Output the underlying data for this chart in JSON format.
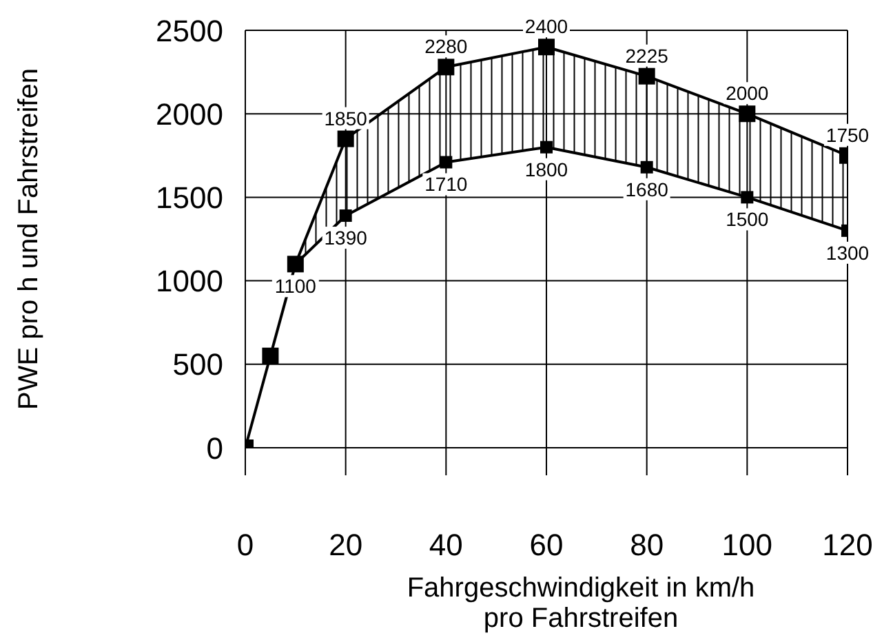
{
  "chart_data": {
    "type": "line",
    "xlabel": "Fahrgeschwindigkeit in km/h\npro Fahrstreifen",
    "ylabel": "PWE pro h und Fahrstreifen",
    "xlim": [
      0,
      120
    ],
    "xticks": [
      0,
      20,
      40,
      60,
      80,
      100,
      120
    ],
    "ylim": [
      0,
      2500
    ],
    "yticks": [
      0,
      500,
      1000,
      1500,
      2000,
      2500
    ],
    "grid": true,
    "legend": false,
    "marker": "square",
    "line_style": "solid",
    "series": [
      {
        "color": "#000000",
        "x": [
          0,
          5,
          10,
          20,
          40,
          60,
          80,
          100,
          120
        ],
        "values": [
          0,
          550,
          1100,
          1850,
          2280,
          2400,
          2225,
          2000,
          1750
        ],
        "value_labels": [
          null,
          null,
          null,
          "1850",
          "2280",
          "2400",
          "2225",
          "2000",
          "1750"
        ]
      },
      {
        "color": "#000000",
        "x": [
          10,
          20,
          40,
          60,
          80,
          100,
          120
        ],
        "values": [
          1100,
          1390,
          1710,
          1800,
          1680,
          1500,
          1300
        ],
        "value_labels": [
          "1100",
          "1390",
          "1710",
          "1800",
          "1680",
          "1500",
          "1300"
        ]
      }
    ]
  }
}
